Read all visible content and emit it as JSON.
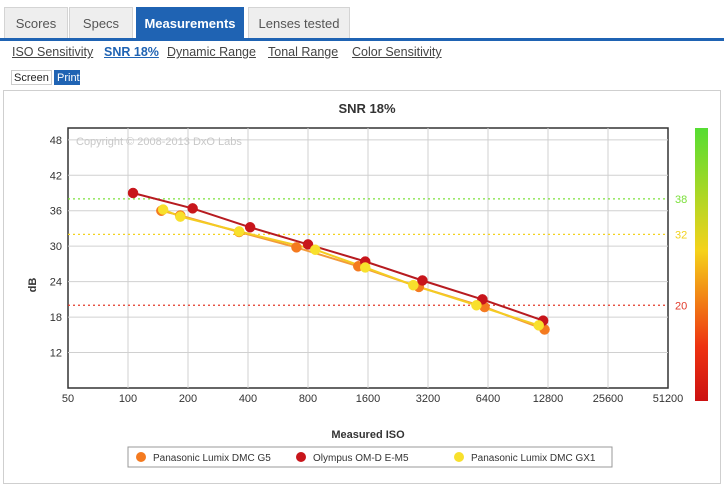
{
  "tabs": [
    {
      "label": "Scores"
    },
    {
      "label": "Specs"
    },
    {
      "label": "Measurements",
      "active": true
    },
    {
      "label": "Lenses tested"
    }
  ],
  "subnav": [
    {
      "label": "ISO Sensitivity"
    },
    {
      "label": "SNR 18%",
      "active": true
    },
    {
      "label": "Dynamic Range"
    },
    {
      "label": "Tonal Range"
    },
    {
      "label": "Color Sensitivity"
    }
  ],
  "view_modes": {
    "screen": "Screen",
    "print": "Print",
    "selected": "Print"
  },
  "colors": {
    "accent": "#1f63b3"
  },
  "chart_data": {
    "type": "line",
    "title": "SNR 18%",
    "xlabel": "Measured ISO",
    "ylabel": "dB",
    "x_scale": "log2",
    "xlim": [
      50,
      51200
    ],
    "ylim": [
      6,
      50
    ],
    "x_ticks": [
      50,
      100,
      200,
      400,
      800,
      1600,
      3200,
      6400,
      12800,
      25600,
      51200
    ],
    "y_ticks": [
      12,
      18,
      24,
      30,
      36,
      42,
      48
    ],
    "grid": true,
    "watermark": "Copyright © 2008-2013 DxO Labs",
    "reference_lines": [
      {
        "value": 38,
        "label": "38",
        "color": "#7be03a"
      },
      {
        "value": 32,
        "label": "32",
        "color": "#f2d21e"
      },
      {
        "value": 20,
        "label": "20",
        "color": "#e23a2a"
      }
    ],
    "legend_position": "bottom",
    "color_scale": [
      "#55dd33",
      "#f5d21a",
      "#ee3311",
      "#cc1111"
    ],
    "series": [
      {
        "name": "Panasonic Lumix DMC G5",
        "color": "#f47a1f",
        "line_color": "#f39a3a",
        "x": [
          147,
          183,
          361,
          700,
          1430,
          2880,
          6150,
          12300
        ],
        "y": [
          36.0,
          35.2,
          32.4,
          29.8,
          26.6,
          23.1,
          19.7,
          15.9
        ]
      },
      {
        "name": "Olympus OM-D E-M5",
        "color": "#c8151b",
        "line_color": "#b71b20",
        "x": [
          106,
          211,
          410,
          800,
          1550,
          3000,
          6000,
          12100
        ],
        "y": [
          39.0,
          36.4,
          33.2,
          30.3,
          27.4,
          24.2,
          21.0,
          17.4
        ]
      },
      {
        "name": "Panasonic Lumix DMC GX1",
        "color": "#f8e02c",
        "line_color": "#f4cc22",
        "x": [
          150,
          183,
          361,
          870,
          1550,
          2700,
          5600,
          11500
        ],
        "y": [
          36.2,
          35.0,
          32.5,
          29.4,
          26.4,
          23.4,
          20.0,
          16.6
        ]
      }
    ]
  }
}
